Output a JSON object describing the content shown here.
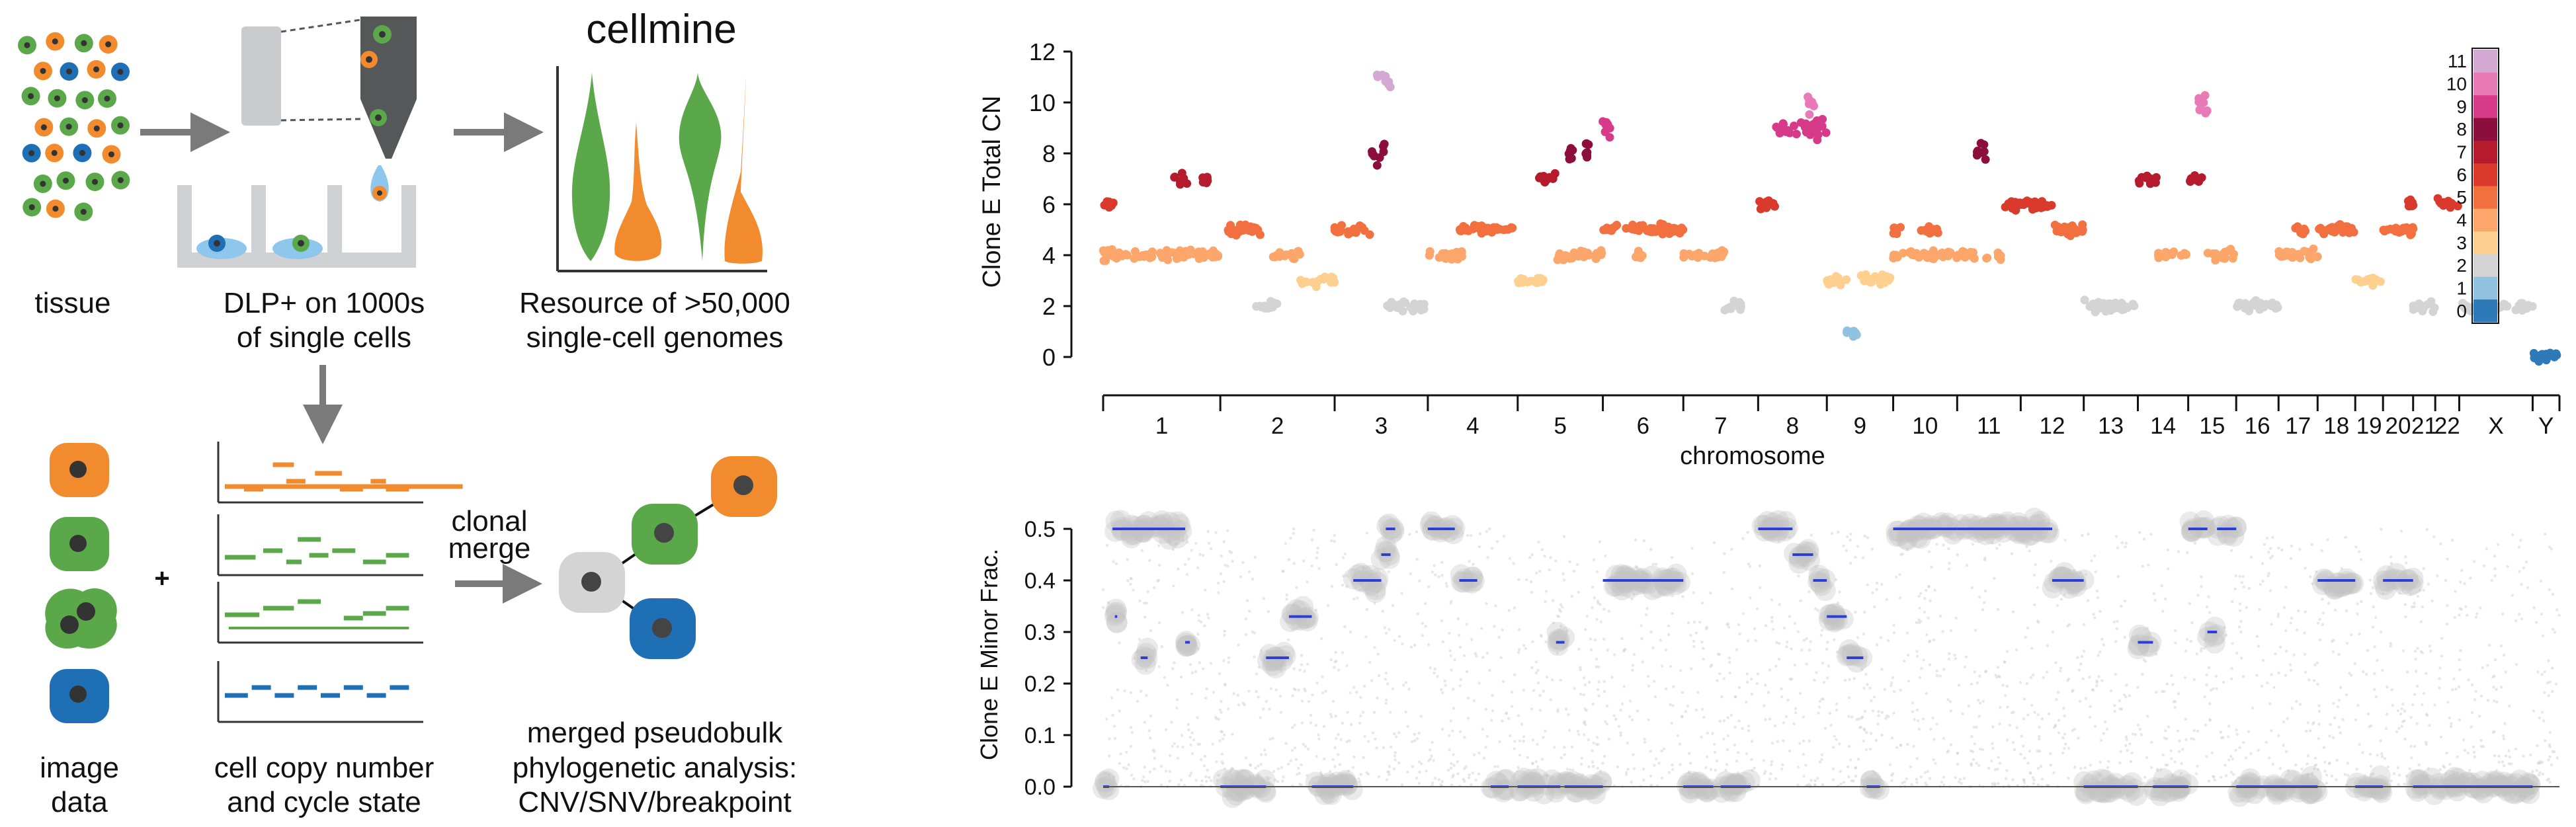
{
  "workflow": {
    "labels": {
      "tissue": "tissue",
      "dlp_line1": "DLP+ on 1000s",
      "dlp_line2": "of single cells",
      "cellmine_title": "cellmine",
      "resource_line1": "Resource of >50,000",
      "resource_line2": "single-cell genomes",
      "image_line1": "image",
      "image_line2": "data",
      "plus": "+",
      "cn_line1": "cell copy number",
      "cn_line2": "and cycle state",
      "clonal_line1": "clonal",
      "clonal_line2": "merge",
      "pb_line1": "merged pseudobulk",
      "pb_line2": "phylogenetic analysis:",
      "pb_line3": "CNV/SNV/breakpoint"
    },
    "colors": {
      "green": "#5aa84a",
      "orange": "#f28a2e",
      "blue": "#1f6fb4",
      "gray": "#d0d0d0",
      "nucleus": "#444444"
    }
  },
  "chart_data": [
    {
      "type": "scatter",
      "ylabel": "Clone E Total CN",
      "xlabel": "chromosome",
      "ylim": [
        0,
        12
      ],
      "yticks": [
        "0",
        "2",
        "4",
        "6",
        "8",
        "10",
        "12"
      ],
      "chromosomes": [
        "1",
        "2",
        "3",
        "4",
        "5",
        "6",
        "7",
        "8",
        "9",
        "10",
        "11",
        "12",
        "13",
        "14",
        "15",
        "16",
        "17",
        "18",
        "19",
        "20",
        "21",
        "22",
        "X",
        "Y"
      ],
      "colorbar": {
        "labels": [
          "0",
          "1",
          "2",
          "3",
          "4",
          "5",
          "6",
          "7",
          "8",
          "9",
          "10",
          "11"
        ],
        "colors": [
          "#2e7ab8",
          "#91c2e0",
          "#d4d4d4",
          "#fdd08f",
          "#fca66b",
          "#f26f3f",
          "#d93a2b",
          "#b51a2d",
          "#8c0e3a",
          "#d83a8a",
          "#e97ab8",
          "#d3a8d3"
        ]
      },
      "segments": [
        {
          "chr": "1",
          "from": 0.0,
          "to": 0.1,
          "cn": 6
        },
        {
          "chr": "1",
          "from": 0.0,
          "to": 0.55,
          "cn": 4
        },
        {
          "chr": "1",
          "from": 0.55,
          "to": 1.0,
          "cn": 4
        },
        {
          "chr": "1",
          "from": 0.6,
          "to": 0.72,
          "cn": 7
        },
        {
          "chr": "1",
          "from": 0.85,
          "to": 0.9,
          "cn": 7
        },
        {
          "chr": "2",
          "from": 0.0,
          "to": 0.35,
          "cn": 5
        },
        {
          "chr": "2",
          "from": 0.3,
          "to": 0.5,
          "cn": 2
        },
        {
          "chr": "2",
          "from": 0.45,
          "to": 0.7,
          "cn": 4
        },
        {
          "chr": "2",
          "from": 0.7,
          "to": 1.0,
          "cn": 3
        },
        {
          "chr": "3",
          "from": 0.0,
          "to": 0.4,
          "cn": 5
        },
        {
          "chr": "3",
          "from": 0.4,
          "to": 0.55,
          "cn": 8
        },
        {
          "chr": "3",
          "from": 0.45,
          "to": 0.6,
          "cn": 11
        },
        {
          "chr": "3",
          "from": 0.55,
          "to": 1.0,
          "cn": 2
        },
        {
          "chr": "4",
          "from": 0.0,
          "to": 0.4,
          "cn": 4
        },
        {
          "chr": "4",
          "from": 0.35,
          "to": 1.0,
          "cn": 5
        },
        {
          "chr": "5",
          "from": 0.0,
          "to": 0.3,
          "cn": 3
        },
        {
          "chr": "5",
          "from": 0.25,
          "to": 0.45,
          "cn": 7
        },
        {
          "chr": "5",
          "from": 0.45,
          "to": 1.0,
          "cn": 4
        },
        {
          "chr": "5",
          "from": 0.6,
          "to": 0.65,
          "cn": 8
        },
        {
          "chr": "5",
          "from": 0.8,
          "to": 0.85,
          "cn": 8
        },
        {
          "chr": "6",
          "from": 0.0,
          "to": 1.0,
          "cn": 5
        },
        {
          "chr": "6",
          "from": 0.0,
          "to": 0.1,
          "cn": 9
        },
        {
          "chr": "6",
          "from": 0.4,
          "to": 0.55,
          "cn": 4
        },
        {
          "chr": "7",
          "from": 0.0,
          "to": 0.55,
          "cn": 4
        },
        {
          "chr": "7",
          "from": 0.55,
          "to": 0.8,
          "cn": 2
        },
        {
          "chr": "8",
          "from": 0.0,
          "to": 0.25,
          "cn": 6
        },
        {
          "chr": "8",
          "from": 0.25,
          "to": 1.0,
          "cn": 9
        },
        {
          "chr": "8",
          "from": 0.7,
          "to": 0.85,
          "cn": 10
        },
        {
          "chr": "9",
          "from": 0.0,
          "to": 0.3,
          "cn": 3
        },
        {
          "chr": "9",
          "from": 0.3,
          "to": 0.45,
          "cn": 1
        },
        {
          "chr": "9",
          "from": 0.5,
          "to": 1.0,
          "cn": 3
        },
        {
          "chr": "10",
          "from": 0.0,
          "to": 1.0,
          "cn": 4
        },
        {
          "chr": "10",
          "from": 0.0,
          "to": 0.15,
          "cn": 5
        },
        {
          "chr": "10",
          "from": 0.4,
          "to": 0.7,
          "cn": 5
        },
        {
          "chr": "11",
          "from": 0.0,
          "to": 0.3,
          "cn": 4
        },
        {
          "chr": "11",
          "from": 0.3,
          "to": 0.45,
          "cn": 8
        },
        {
          "chr": "11",
          "from": 0.45,
          "to": 0.7,
          "cn": 4
        },
        {
          "chr": "11",
          "from": 0.7,
          "to": 1.0,
          "cn": 6
        },
        {
          "chr": "12",
          "from": 0.0,
          "to": 0.5,
          "cn": 6
        },
        {
          "chr": "12",
          "from": 0.5,
          "to": 1.0,
          "cn": 5
        },
        {
          "chr": "13",
          "from": 0.0,
          "to": 1.0,
          "cn": 2
        },
        {
          "chr": "14",
          "from": 0.0,
          "to": 0.4,
          "cn": 7
        },
        {
          "chr": "14",
          "from": 0.4,
          "to": 1.0,
          "cn": 4
        },
        {
          "chr": "15",
          "from": 0.0,
          "to": 0.3,
          "cn": 7
        },
        {
          "chr": "15",
          "from": 0.2,
          "to": 0.4,
          "cn": 10
        },
        {
          "chr": "15",
          "from": 0.4,
          "to": 1.0,
          "cn": 4
        },
        {
          "chr": "16",
          "from": 0.0,
          "to": 1.0,
          "cn": 2
        },
        {
          "chr": "17",
          "from": 0.0,
          "to": 1.0,
          "cn": 4
        },
        {
          "chr": "17",
          "from": 0.4,
          "to": 0.7,
          "cn": 5
        },
        {
          "chr": "18",
          "from": 0.0,
          "to": 1.0,
          "cn": 5
        },
        {
          "chr": "19",
          "from": 0.0,
          "to": 1.0,
          "cn": 3
        },
        {
          "chr": "20",
          "from": 0.0,
          "to": 1.0,
          "cn": 5
        },
        {
          "chr": "20",
          "from": 0.8,
          "to": 1.0,
          "cn": 6
        },
        {
          "chr": "21",
          "from": 0.0,
          "to": 1.0,
          "cn": 2
        },
        {
          "chr": "22",
          "from": 0.0,
          "to": 1.0,
          "cn": 6
        },
        {
          "chr": "X",
          "from": 0.0,
          "to": 1.0,
          "cn": 2
        },
        {
          "chr": "Y",
          "from": 0.0,
          "to": 1.0,
          "cn": 0
        }
      ]
    },
    {
      "type": "scatter",
      "ylabel": "Clone E Minor Frac.",
      "ylim": [
        0,
        0.5
      ],
      "yticks": [
        "0.0",
        "0.1",
        "0.2",
        "0.3",
        "0.4",
        "0.5"
      ],
      "segments": [
        {
          "chr": "1",
          "from": 0.0,
          "to": 0.05,
          "v": 0.0
        },
        {
          "chr": "1",
          "from": 0.08,
          "to": 0.7,
          "v": 0.5
        },
        {
          "chr": "1",
          "from": 0.1,
          "to": 0.12,
          "v": 0.33
        },
        {
          "chr": "1",
          "from": 0.32,
          "to": 0.38,
          "v": 0.25
        },
        {
          "chr": "1",
          "from": 0.7,
          "to": 0.74,
          "v": 0.28
        },
        {
          "chr": "2",
          "from": 0.0,
          "to": 0.4,
          "v": 0.0
        },
        {
          "chr": "2",
          "from": 0.4,
          "to": 0.6,
          "v": 0.25
        },
        {
          "chr": "2",
          "from": 0.6,
          "to": 0.8,
          "v": 0.33
        },
        {
          "chr": "2",
          "from": 0.8,
          "to": 1.0,
          "v": 0.0
        },
        {
          "chr": "3",
          "from": 0.0,
          "to": 0.2,
          "v": 0.0
        },
        {
          "chr": "3",
          "from": 0.2,
          "to": 0.5,
          "v": 0.4
        },
        {
          "chr": "3",
          "from": 0.5,
          "to": 0.6,
          "v": 0.45
        },
        {
          "chr": "3",
          "from": 0.55,
          "to": 0.65,
          "v": 0.5
        },
        {
          "chr": "4",
          "from": 0.0,
          "to": 0.3,
          "v": 0.5
        },
        {
          "chr": "4",
          "from": 0.35,
          "to": 0.55,
          "v": 0.4
        },
        {
          "chr": "4",
          "from": 0.7,
          "to": 0.9,
          "v": 0.0
        },
        {
          "chr": "5",
          "from": 0.0,
          "to": 0.5,
          "v": 0.0
        },
        {
          "chr": "5",
          "from": 0.45,
          "to": 0.55,
          "v": 0.28
        },
        {
          "chr": "5",
          "from": 0.55,
          "to": 1.0,
          "v": 0.0
        },
        {
          "chr": "6",
          "from": 0.0,
          "to": 0.6,
          "v": 0.4
        },
        {
          "chr": "6",
          "from": 0.6,
          "to": 1.0,
          "v": 0.4
        },
        {
          "chr": "7",
          "from": 0.0,
          "to": 0.4,
          "v": 0.0
        },
        {
          "chr": "7",
          "from": 0.5,
          "to": 0.9,
          "v": 0.0
        },
        {
          "chr": "8",
          "from": 0.0,
          "to": 0.5,
          "v": 0.5
        },
        {
          "chr": "8",
          "from": 0.5,
          "to": 0.8,
          "v": 0.45
        },
        {
          "chr": "8",
          "from": 0.8,
          "to": 1.0,
          "v": 0.4
        },
        {
          "chr": "9",
          "from": 0.0,
          "to": 0.3,
          "v": 0.33
        },
        {
          "chr": "9",
          "from": 0.3,
          "to": 0.55,
          "v": 0.25
        },
        {
          "chr": "9",
          "from": 0.6,
          "to": 0.8,
          "v": 0.0
        },
        {
          "chr": "10",
          "from": 0.0,
          "to": 1.0,
          "v": 0.5
        },
        {
          "chr": "11",
          "from": 0.0,
          "to": 0.6,
          "v": 0.5
        },
        {
          "chr": "11",
          "from": 0.6,
          "to": 1.0,
          "v": 0.5
        },
        {
          "chr": "12",
          "from": 0.0,
          "to": 0.5,
          "v": 0.5
        },
        {
          "chr": "12",
          "from": 0.5,
          "to": 1.0,
          "v": 0.4
        },
        {
          "chr": "13",
          "from": 0.0,
          "to": 1.0,
          "v": 0.0
        },
        {
          "chr": "14",
          "from": 0.0,
          "to": 0.3,
          "v": 0.28
        },
        {
          "chr": "14",
          "from": 0.3,
          "to": 1.0,
          "v": 0.0
        },
        {
          "chr": "15",
          "from": 0.0,
          "to": 0.4,
          "v": 0.5
        },
        {
          "chr": "15",
          "from": 0.4,
          "to": 0.6,
          "v": 0.3
        },
        {
          "chr": "15",
          "from": 0.6,
          "to": 1.0,
          "v": 0.5
        },
        {
          "chr": "16",
          "from": 0.0,
          "to": 1.0,
          "v": 0.0
        },
        {
          "chr": "17",
          "from": 0.0,
          "to": 1.0,
          "v": 0.0
        },
        {
          "chr": "18",
          "from": 0.0,
          "to": 1.0,
          "v": 0.4
        },
        {
          "chr": "19",
          "from": 0.0,
          "to": 1.0,
          "v": 0.0
        },
        {
          "chr": "20",
          "from": 0.0,
          "to": 1.0,
          "v": 0.4
        },
        {
          "chr": "21",
          "from": 0.0,
          "to": 1.0,
          "v": 0.0
        },
        {
          "chr": "22",
          "from": 0.0,
          "to": 1.0,
          "v": 0.0
        },
        {
          "chr": "X",
          "from": 0.0,
          "to": 1.0,
          "v": 0.0
        }
      ]
    }
  ]
}
